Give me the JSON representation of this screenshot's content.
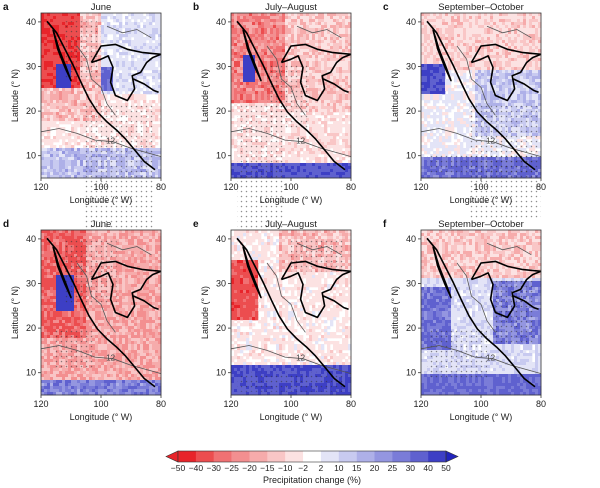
{
  "figure": {
    "colorbar": {
      "label": "Precipitation change (%)",
      "ticks": [
        "−50",
        "−40",
        "−30",
        "−25",
        "−20",
        "−15",
        "−10",
        "−2",
        "2",
        "10",
        "15",
        "20",
        "25",
        "30",
        "40",
        "50"
      ],
      "colors": [
        "#e8242a",
        "#ec4d4f",
        "#f07173",
        "#f38f90",
        "#f6abab",
        "#f9c6c6",
        "#fce2e2",
        "#ffffff",
        "#e3e4f7",
        "#c8caf0",
        "#aeb0e8",
        "#9496e0",
        "#7a7cd8",
        "#5f61cf",
        "#3d3fc5"
      ],
      "under_color": "#e8242a",
      "over_color": "#2224bc"
    },
    "axis_labels": {
      "x": "Longitude (° W)",
      "y": "Latitude (° N)"
    }
  },
  "chart_data": [
    {
      "type": "heatmap",
      "panel": "a",
      "title": "June",
      "xlabel": "Longitude (° W)",
      "ylabel": "Latitude (° N)",
      "x_ticks": [
        "120",
        "100",
        "80"
      ],
      "y_ticks": [
        "40",
        "30",
        "20",
        "10"
      ],
      "xlim": [
        120,
        80
      ],
      "ylim": [
        5,
        42
      ],
      "contour_label": "12"
    },
    {
      "type": "heatmap",
      "panel": "b",
      "title": "July–August",
      "xlabel": "Longitude (° W)",
      "ylabel": "Latitude (° N)",
      "x_ticks": [
        "120",
        "100",
        "80"
      ],
      "y_ticks": [
        "40",
        "30",
        "20",
        "10"
      ],
      "xlim": [
        120,
        80
      ],
      "ylim": [
        5,
        42
      ],
      "contour_label": "12"
    },
    {
      "type": "heatmap",
      "panel": "c",
      "title": "September–October",
      "xlabel": "Longitude (° W)",
      "ylabel": "Latitude (° N)",
      "x_ticks": [
        "120",
        "100",
        "80"
      ],
      "y_ticks": [
        "40",
        "30",
        "20",
        "10"
      ],
      "xlim": [
        120,
        80
      ],
      "ylim": [
        5,
        42
      ],
      "contour_label": "12"
    },
    {
      "type": "heatmap",
      "panel": "d",
      "title": "June",
      "xlabel": "Longitude (° W)",
      "ylabel": "Latitude (° N)",
      "x_ticks": [
        "120",
        "100",
        "80"
      ],
      "y_ticks": [
        "40",
        "30",
        "20",
        "10"
      ],
      "xlim": [
        120,
        80
      ],
      "ylim": [
        5,
        42
      ],
      "contour_label": "12"
    },
    {
      "type": "heatmap",
      "panel": "e",
      "title": "July–August",
      "xlabel": "Longitude (° W)",
      "ylabel": "Latitude (° N)",
      "x_ticks": [
        "120",
        "100",
        "80"
      ],
      "y_ticks": [
        "40",
        "30",
        "20",
        "10"
      ],
      "xlim": [
        120,
        80
      ],
      "ylim": [
        5,
        42
      ],
      "contour_label": "12"
    },
    {
      "type": "heatmap",
      "panel": "f",
      "title": "September–October",
      "xlabel": "Longitude (° W)",
      "ylabel": "Latitude (° N)",
      "x_ticks": [
        "120",
        "100",
        "80"
      ],
      "y_ticks": [
        "40",
        "30",
        "20",
        "10"
      ],
      "xlim": [
        120,
        80
      ],
      "ylim": [
        5,
        42
      ],
      "contour_label": "12"
    }
  ]
}
